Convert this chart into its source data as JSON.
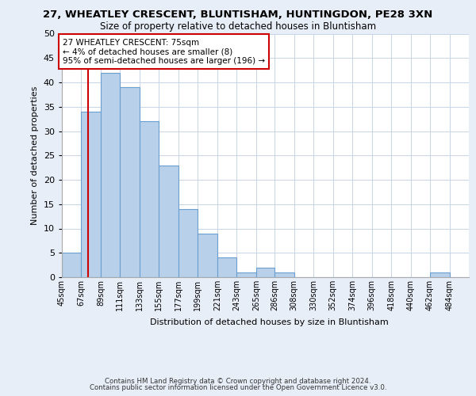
{
  "title1": "27, WHEATLEY CRESCENT, BLUNTISHAM, HUNTINGDON, PE28 3XN",
  "title2": "Size of property relative to detached houses in Bluntisham",
  "xlabel": "Distribution of detached houses by size in Bluntisham",
  "ylabel": "Number of detached properties",
  "bar_values": [
    5,
    34,
    42,
    39,
    32,
    23,
    14,
    9,
    4,
    1,
    2,
    1,
    0,
    0,
    0,
    0,
    0,
    0,
    0,
    1,
    0
  ],
  "bin_edges": [
    45,
    67,
    89,
    111,
    133,
    155,
    177,
    199,
    221,
    243,
    265,
    286,
    308,
    330,
    352,
    374,
    396,
    418,
    440,
    462,
    484,
    506
  ],
  "tick_labels": [
    "45sqm",
    "67sqm",
    "89sqm",
    "111sqm",
    "133sqm",
    "155sqm",
    "177sqm",
    "199sqm",
    "221sqm",
    "243sqm",
    "265sqm",
    "286sqm",
    "308sqm",
    "330sqm",
    "352sqm",
    "374sqm",
    "396sqm",
    "418sqm",
    "440sqm",
    "462sqm",
    "484sqm"
  ],
  "bar_color": "#b8d0ea",
  "bar_edge_color": "#6a9fd0",
  "property_line_x": 75,
  "property_line_color": "#cc0000",
  "annotation_text": "27 WHEATLEY CRESCENT: 75sqm\n← 4% of detached houses are smaller (8)\n95% of semi-detached houses are larger (196) →",
  "annotation_box_color": "#ffffff",
  "annotation_box_edge": "#cc0000",
  "ylim": [
    0,
    50
  ],
  "yticks": [
    0,
    5,
    10,
    15,
    20,
    25,
    30,
    35,
    40,
    45,
    50
  ],
  "footer1": "Contains HM Land Registry data © Crown copyright and database right 2024.",
  "footer2": "Contains public sector information licensed under the Open Government Licence v3.0.",
  "bg_color": "#e8eef8",
  "plot_bg_color": "#ffffff",
  "grid_color": "#c8d4e8"
}
